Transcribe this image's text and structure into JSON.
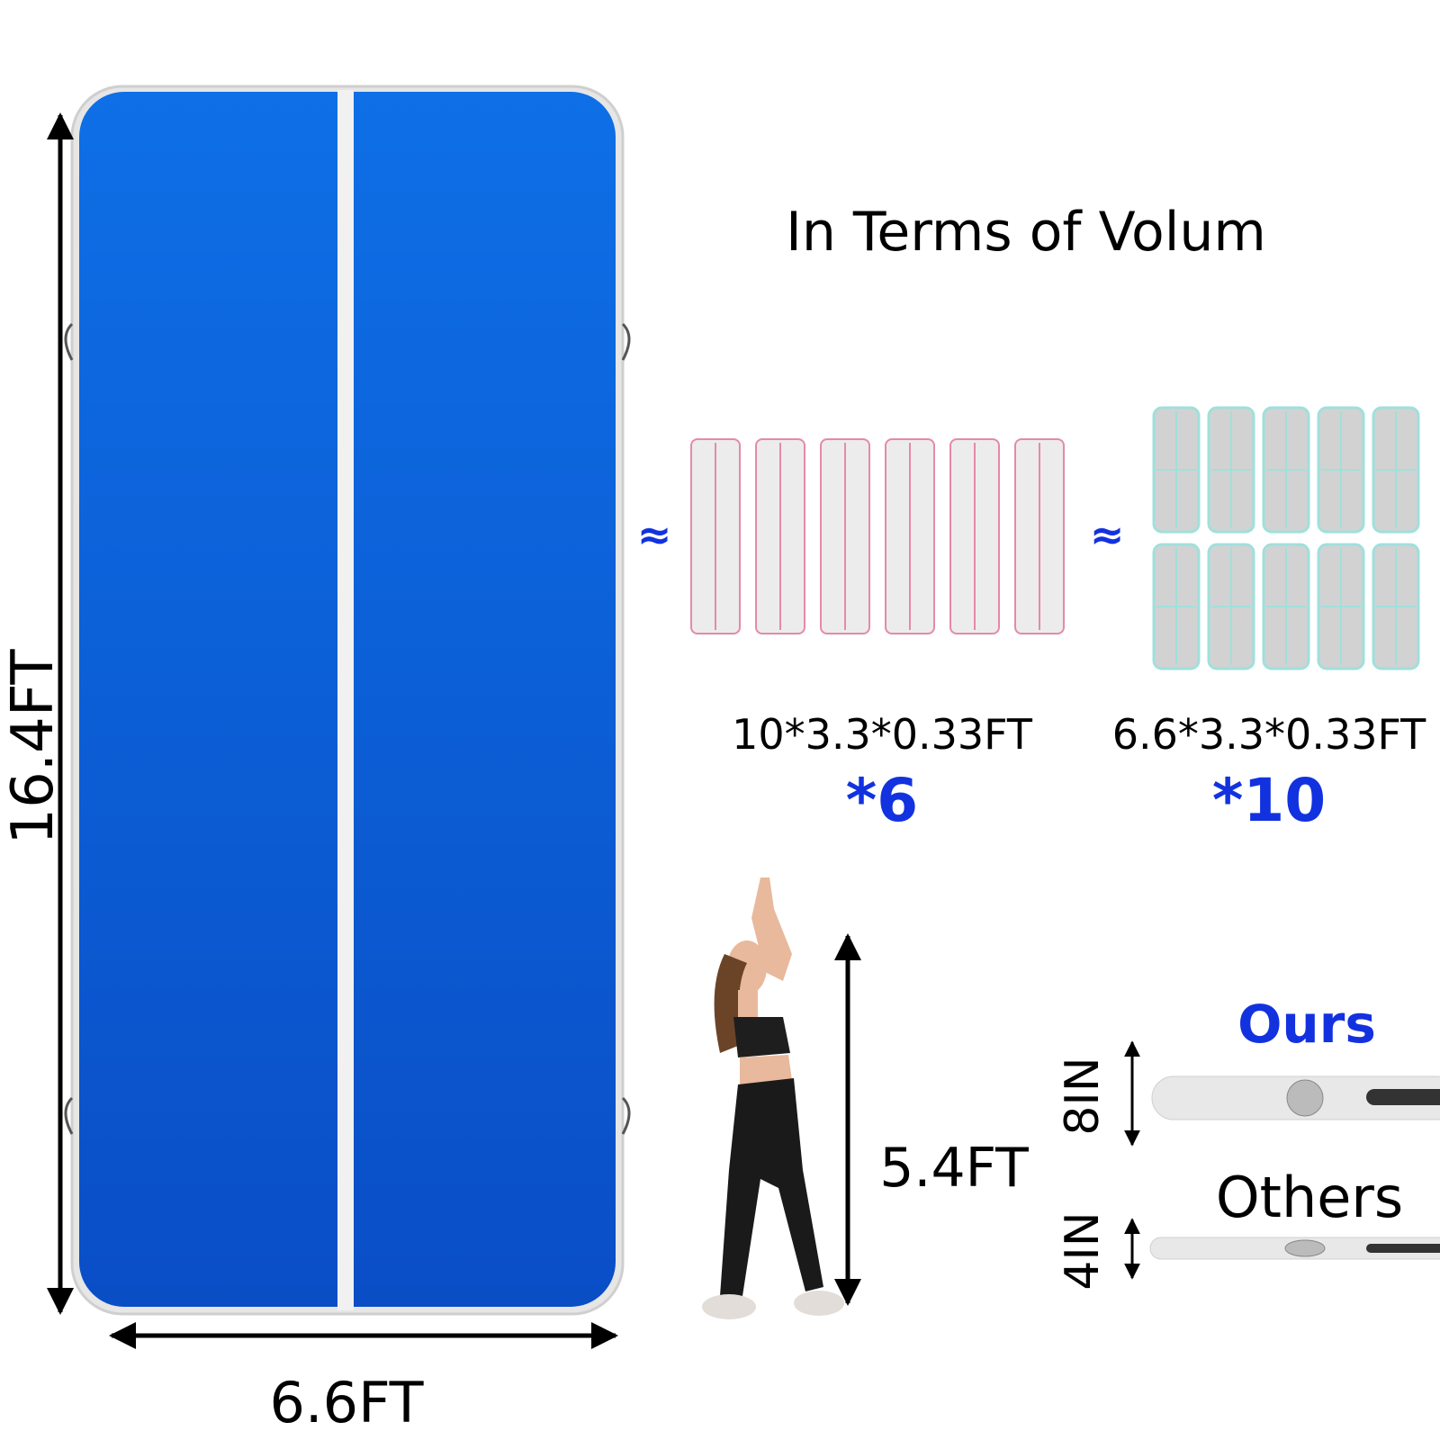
{
  "main_mat": {
    "height_label": "16.4FT",
    "width_label": "6.6FT"
  },
  "title": "In Terms of Volum",
  "comparisons": [
    {
      "approx": "≈",
      "size": "10*3.3*0.33FT",
      "count": "*6"
    },
    {
      "approx": "≈",
      "size": "6.6*3.3*0.33FT",
      "count": "*10"
    }
  ],
  "person": {
    "height_label": "5.4FT"
  },
  "thickness": [
    {
      "name": "Ours",
      "label": "8IN"
    },
    {
      "name": "Others",
      "label": "4IN"
    }
  ]
}
